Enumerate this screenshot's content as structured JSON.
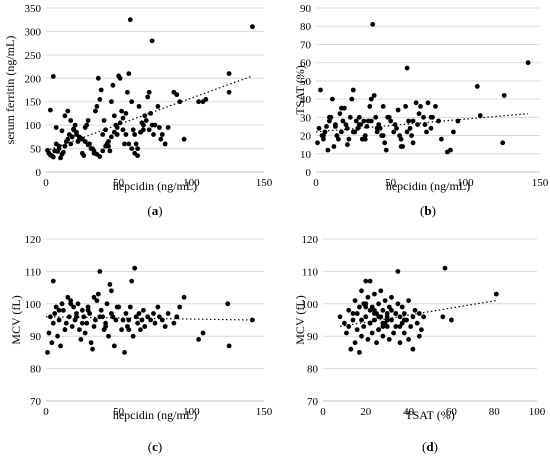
{
  "chart_data": [
    {
      "type": "scatter",
      "panel_label": "a",
      "xlabel": "hepcidin (ng/mL)",
      "ylabel": "serum ferritin (ng/mL)",
      "xlim": [
        0,
        150
      ],
      "ylim": [
        0,
        350
      ],
      "xticks": [
        0,
        50,
        100,
        150
      ],
      "yticks": [
        0,
        50,
        100,
        150,
        200,
        250,
        300,
        350
      ],
      "trendline": [
        [
          0,
          45
        ],
        [
          142,
          205
        ]
      ],
      "x": [
        1,
        2,
        3,
        4,
        5,
        6,
        7,
        8,
        9,
        10,
        11,
        12,
        13,
        14,
        15,
        16,
        17,
        18,
        19,
        20,
        21,
        22,
        23,
        24,
        25,
        26,
        27,
        28,
        29,
        30,
        32,
        33,
        34,
        35,
        36,
        37,
        38,
        39,
        40,
        41,
        42,
        43,
        44,
        45,
        46,
        47,
        48,
        49,
        50,
        51,
        52,
        53,
        54,
        55,
        56,
        57,
        58,
        59,
        60,
        61,
        62,
        63,
        64,
        65,
        66,
        67,
        68,
        70,
        71,
        72,
        73,
        74,
        75,
        77,
        78,
        79,
        80,
        82,
        84,
        88,
        90,
        92,
        95,
        105,
        108,
        110,
        126,
        126,
        142,
        3,
        5,
        7,
        9,
        11,
        13,
        15,
        17,
        19,
        21,
        23,
        25,
        27,
        29,
        31,
        33,
        35,
        37,
        39,
        41,
        43,
        45,
        47,
        49,
        51,
        53,
        55,
        57,
        59,
        61,
        63,
        65,
        67,
        69,
        71,
        73
      ],
      "y": [
        46,
        40,
        36,
        35,
        32,
        45,
        60,
        44,
        50,
        30,
        38,
        42,
        55,
        65,
        70,
        80,
        60,
        75,
        90,
        100,
        85,
        65,
        70,
        72,
        40,
        35,
        95,
        100,
        110,
        60,
        50,
        40,
        130,
        140,
        200,
        155,
        175,
        80,
        110,
        90,
        60,
        55,
        45,
        150,
        185,
        120,
        100,
        80,
        205,
        200,
        130,
        90,
        60,
        80,
        170,
        210,
        325,
        150,
        90,
        80,
        60,
        50,
        140,
        85,
        105,
        90,
        120,
        160,
        170,
        125,
        280,
        80,
        100,
        140,
        95,
        70,
        80,
        60,
        95,
        170,
        165,
        150,
        70,
        150,
        150,
        155,
        170,
        210,
        310,
        132,
        204,
        95,
        55,
        88,
        120,
        130,
        110,
        92,
        80,
        75,
        70,
        65,
        58,
        50,
        45,
        38,
        33,
        45,
        55,
        65,
        75,
        85,
        95,
        105,
        115,
        125,
        60,
        50,
        40,
        35,
        85,
        100,
        110,
        90,
        100
      ]
    },
    {
      "type": "scatter",
      "panel_label": "b",
      "xlabel": "hepcidin (ng/mL)",
      "ylabel": "TSAT (%)",
      "xlim": [
        0,
        150
      ],
      "ylim": [
        0,
        90
      ],
      "xticks": [
        0,
        50,
        100,
        150
      ],
      "yticks": [
        0,
        10,
        20,
        30,
        40,
        50,
        60,
        70,
        80,
        90
      ],
      "trendline": [
        [
          0,
          22
        ],
        [
          142,
          32
        ]
      ],
      "x": [
        1,
        2,
        3,
        4,
        5,
        6,
        7,
        8,
        9,
        10,
        11,
        12,
        13,
        14,
        15,
        16,
        17,
        18,
        19,
        20,
        21,
        22,
        23,
        24,
        25,
        26,
        27,
        28,
        29,
        30,
        31,
        32,
        33,
        34,
        35,
        36,
        37,
        38,
        39,
        40,
        41,
        42,
        43,
        44,
        45,
        46,
        47,
        48,
        50,
        52,
        54,
        55,
        56,
        57,
        58,
        60,
        61,
        62,
        63,
        64,
        65,
        67,
        68,
        70,
        72,
        74,
        75,
        77,
        78,
        80,
        82,
        84,
        88,
        90,
        92,
        95,
        108,
        110,
        125,
        126,
        142,
        5,
        9,
        13,
        17,
        21,
        25,
        29,
        33,
        37,
        41,
        45,
        49,
        53,
        57,
        61,
        65,
        69,
        73,
        77
      ],
      "y": [
        16,
        24,
        45,
        20,
        18,
        22,
        25,
        12,
        28,
        30,
        40,
        14,
        26,
        20,
        18,
        32,
        22,
        28,
        35,
        26,
        24,
        18,
        30,
        40,
        45,
        22,
        28,
        24,
        30,
        26,
        18,
        28,
        20,
        25,
        28,
        36,
        40,
        81,
        42,
        30,
        22,
        26,
        24,
        20,
        36,
        16,
        12,
        30,
        28,
        22,
        24,
        34,
        20,
        18,
        14,
        36,
        57,
        28,
        24,
        20,
        16,
        38,
        26,
        36,
        30,
        22,
        38,
        24,
        30,
        36,
        28,
        18,
        11,
        12,
        22,
        28,
        47,
        31,
        16,
        42,
        60,
        20,
        30,
        25,
        35,
        15,
        22,
        26,
        18,
        28,
        24,
        20,
        30,
        26,
        14,
        22,
        28,
        32,
        26,
        30
      ]
    },
    {
      "type": "scatter",
      "panel_label": "c",
      "xlabel": "hepcidin (ng/mL)",
      "ylabel": "MCV (fL)",
      "xlim": [
        0,
        150
      ],
      "ylim": [
        70,
        120
      ],
      "xticks": [
        0,
        50,
        100,
        150
      ],
      "yticks": [
        70,
        80,
        90,
        100,
        110,
        120
      ],
      "trendline": [
        [
          0,
          96
        ],
        [
          142,
          95
        ]
      ],
      "x": [
        1,
        2,
        3,
        4,
        5,
        6,
        7,
        8,
        9,
        10,
        11,
        12,
        13,
        14,
        15,
        16,
        17,
        18,
        19,
        20,
        21,
        22,
        23,
        24,
        25,
        26,
        27,
        28,
        29,
        30,
        31,
        32,
        33,
        34,
        35,
        36,
        37,
        38,
        39,
        40,
        41,
        42,
        43,
        44,
        45,
        46,
        47,
        48,
        50,
        52,
        54,
        55,
        56,
        57,
        58,
        59,
        60,
        61,
        62,
        63,
        64,
        65,
        66,
        67,
        68,
        70,
        72,
        74,
        75,
        77,
        78,
        80,
        82,
        84,
        88,
        90,
        92,
        95,
        105,
        108,
        125,
        126,
        142,
        5,
        9,
        13,
        17,
        21,
        25,
        29,
        33,
        37,
        41,
        45,
        49,
        53,
        57
      ],
      "y": [
        85,
        91,
        96,
        88,
        107,
        97,
        99,
        90,
        95,
        87,
        100,
        98,
        92,
        94,
        102,
        96,
        101,
        93,
        99,
        95,
        97,
        100,
        92,
        89,
        98,
        96,
        91,
        94,
        99,
        97,
        88,
        86,
        93,
        95,
        101,
        103,
        110,
        98,
        96,
        92,
        94,
        100,
        90,
        106,
        104,
        96,
        87,
        95,
        99,
        92,
        85,
        97,
        93,
        95,
        99,
        107,
        90,
        111,
        96,
        94,
        97,
        92,
        95,
        98,
        93,
        96,
        95,
        97,
        94,
        99,
        96,
        95,
        93,
        97,
        94,
        96,
        99,
        102,
        89,
        91,
        100,
        87,
        95,
        94,
        98,
        92,
        100,
        96,
        94,
        98,
        102,
        96,
        93,
        97,
        99,
        95,
        92
      ]
    },
    {
      "type": "scatter",
      "panel_label": "d",
      "xlabel": "TSAT (%)",
      "ylabel": "MCV (fL)",
      "xlim": [
        0,
        100
      ],
      "ylim": [
        70,
        120
      ],
      "xticks": [
        0,
        20,
        40,
        60,
        80,
        100
      ],
      "yticks": [
        70,
        80,
        90,
        100,
        110,
        120
      ],
      "trendline": [
        [
          8,
          93
        ],
        [
          81,
          101
        ]
      ],
      "x": [
        8,
        10,
        11,
        12,
        13,
        14,
        15,
        15,
        16,
        16,
        17,
        17,
        18,
        18,
        19,
        19,
        20,
        20,
        21,
        21,
        22,
        22,
        22,
        23,
        23,
        24,
        24,
        25,
        25,
        26,
        26,
        27,
        27,
        28,
        28,
        29,
        29,
        30,
        30,
        31,
        31,
        32,
        32,
        33,
        34,
        34,
        35,
        35,
        36,
        36,
        37,
        37,
        38,
        38,
        39,
        40,
        40,
        41,
        42,
        42,
        43,
        44,
        45,
        45,
        46,
        47,
        56,
        57,
        60,
        81,
        12,
        14,
        18,
        20,
        24,
        26,
        28,
        30,
        32,
        34,
        36,
        38,
        20,
        22,
        24,
        26,
        28,
        30
      ],
      "y": [
        96,
        94,
        91,
        98,
        86,
        95,
        88,
        101,
        92,
        97,
        85,
        99,
        90,
        104,
        93,
        100,
        96,
        107,
        89,
        102,
        94,
        98,
        107,
        91,
        99,
        95,
        103,
        88,
        97,
        92,
        100,
        96,
        104,
        90,
        98,
        94,
        101,
        93,
        97,
        89,
        99,
        95,
        102,
        91,
        97,
        93,
        100,
        110,
        88,
        96,
        94,
        99,
        91,
        97,
        95,
        89,
        101,
        93,
        96,
        86,
        98,
        94,
        90,
        97,
        92,
        96,
        96,
        111,
        95,
        103,
        93,
        97,
        95,
        99,
        98,
        92,
        94,
        96,
        98,
        97,
        93,
        95,
        100,
        94,
        97,
        96,
        93,
        95
      ]
    }
  ]
}
